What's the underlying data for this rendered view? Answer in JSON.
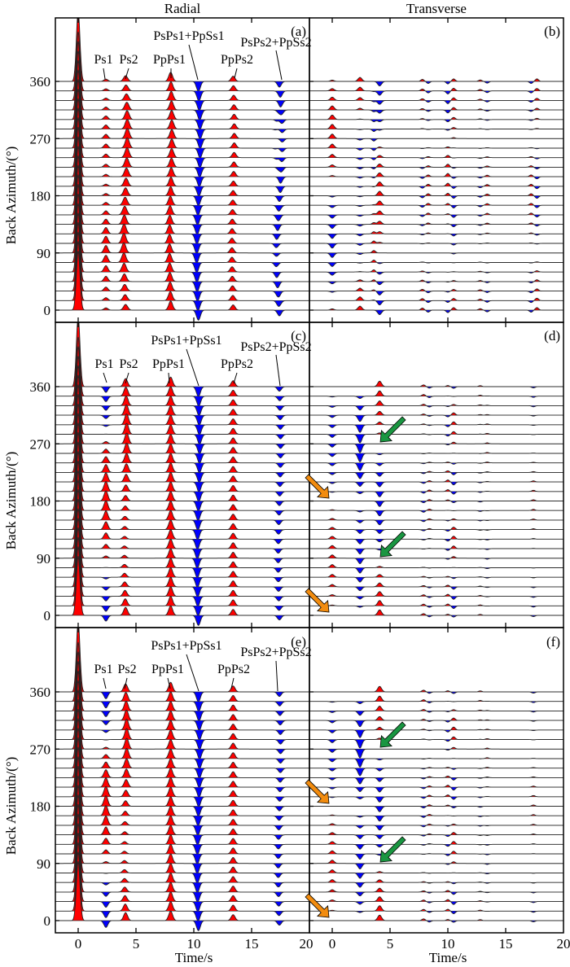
{
  "chart_data": {
    "type": "seismogram-section",
    "description": "Receiver function sections (Radial and Transverse) versus back azimuth for three models",
    "column_titles": [
      "Radial",
      "Transverse"
    ],
    "xlabel": "Time/s",
    "ylabel": "Back Azimuth/(°)",
    "xlim": [
      -2,
      20
    ],
    "x_ticks": [
      0,
      5,
      10,
      15,
      20
    ],
    "ylim_deg": [
      -15,
      450
    ],
    "y_ticks": [
      0,
      90,
      180,
      270,
      360
    ],
    "back_azimuths_step_deg": 15,
    "back_azimuths_count": 25,
    "positive_fill_color": "#ff0000",
    "negative_fill_color": "#0000ff",
    "trace_line_color": "#000000",
    "phases": [
      {
        "name": "P",
        "time": 0.0
      },
      {
        "name": "Ps1",
        "time": 2.4
      },
      {
        "name": "Ps2",
        "time": 4.1
      },
      {
        "name": "PpPs1",
        "time": 8.0
      },
      {
        "name": "PsPs1+PpSs1",
        "time": 10.4
      },
      {
        "name": "PpPs2",
        "time": 13.4
      },
      {
        "name": "PsPs2+PpSs2",
        "time": 17.4
      }
    ],
    "phase_labels": [
      "Ps1",
      "Ps2",
      "PpPs1",
      "PsPs1+PpSs1",
      "PpPs2",
      "PsPs2+PpSs2"
    ],
    "panels": [
      {
        "tag": "(a)",
        "component": "Radial",
        "row": 0,
        "model": "dipping-upper",
        "amplitudes": {
          "P": 1.0,
          "Ps1_mean": 0.22,
          "Ps1_var": 0.18,
          "Ps2_mean": 0.32,
          "Ps2_var": 0.18,
          "PpPs1": 0.38,
          "PsPs1": -0.42,
          "PpPs2": 0.22,
          "PsPs2": -0.2
        }
      },
      {
        "tag": "(b)",
        "component": "Transverse",
        "row": 0,
        "description": "weak two-lobed arrivals with polarity flips around 90° and 270°"
      },
      {
        "tag": "(c)",
        "component": "Radial",
        "row": 1,
        "model": "dipping-lower"
      },
      {
        "tag": "(d)",
        "component": "Transverse",
        "row": 1,
        "annotations": [
          {
            "type": "arrow",
            "color": "#1a9641",
            "target_time": 4.2,
            "target_baz": 270
          },
          {
            "type": "arrow",
            "color": "#1a9641",
            "target_time": 4.2,
            "target_baz": 90
          },
          {
            "type": "arrow",
            "color": "#f28c0f",
            "target_time": -0.2,
            "target_baz": 180
          },
          {
            "type": "arrow",
            "color": "#f28c0f",
            "target_time": -0.2,
            "target_baz": 0
          }
        ]
      },
      {
        "tag": "(e)",
        "component": "Radial",
        "row": 2,
        "model": "dipping-both"
      },
      {
        "tag": "(f)",
        "component": "Transverse",
        "row": 2,
        "annotations": [
          {
            "type": "arrow",
            "color": "#1a9641",
            "target_time": 4.2,
            "target_baz": 270
          },
          {
            "type": "arrow",
            "color": "#1a9641",
            "target_time": 4.2,
            "target_baz": 90
          },
          {
            "type": "arrow",
            "color": "#f28c0f",
            "target_time": -0.2,
            "target_baz": 180
          },
          {
            "type": "arrow",
            "color": "#f28c0f",
            "target_time": -0.2,
            "target_baz": 0
          }
        ]
      }
    ]
  },
  "labels": {
    "radial": "Radial",
    "transverse": "Transverse",
    "xlabel": "Time/s",
    "ylabel": "Back Azimuth/(°)",
    "tags": [
      "(a)",
      "(b)",
      "(c)",
      "(d)",
      "(e)",
      "(f)"
    ],
    "phases": {
      "ps1": "Ps1",
      "ps2": "Ps2",
      "ppps1": "PpPs1",
      "psps1": "PsPs1+PpSs1",
      "ppps2": "PpPs2",
      "psps2": "PsPs2+PpSs2"
    }
  }
}
